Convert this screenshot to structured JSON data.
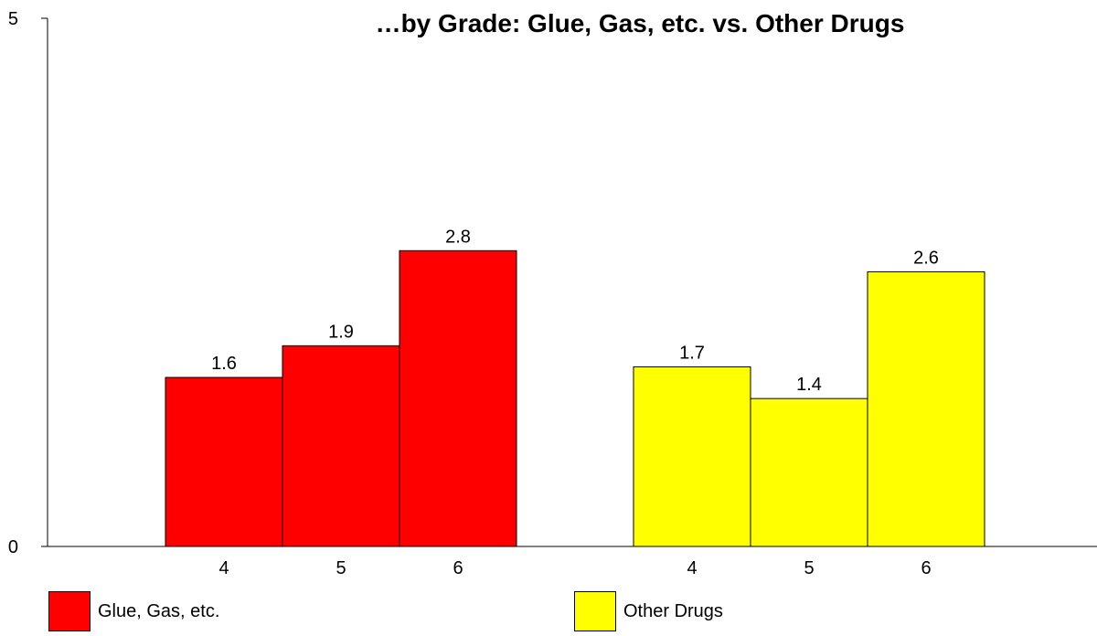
{
  "chart_data": {
    "type": "bar",
    "title": "…by Grade: Glue, Gas, etc. vs. Other Drugs",
    "ylim": [
      0,
      5
    ],
    "y_ticks": [
      0,
      5
    ],
    "grid": false,
    "legend_position": "bottom",
    "series": [
      {
        "name": "Glue, Gas, etc.",
        "color": "#ff0000",
        "categories": [
          "4",
          "5",
          "6"
        ],
        "values": [
          1.6,
          1.9,
          2.8
        ]
      },
      {
        "name": "Other Drugs",
        "color": "#ffff00",
        "categories": [
          "4",
          "5",
          "6"
        ],
        "values": [
          1.7,
          1.4,
          2.6
        ]
      }
    ]
  }
}
